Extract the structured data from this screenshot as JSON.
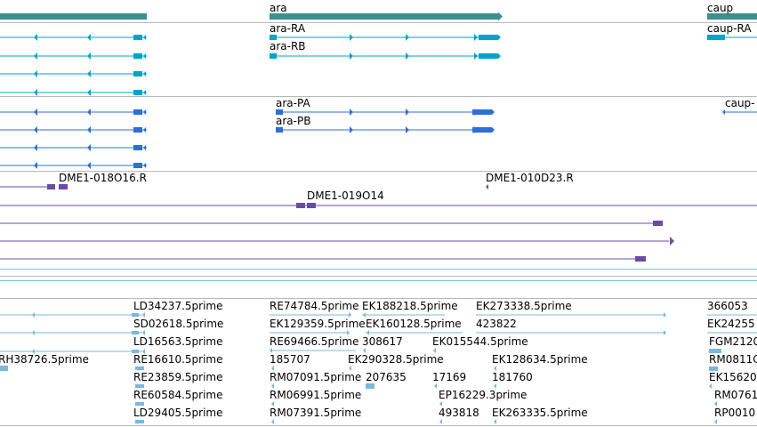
{
  "colors": {
    "gene_teal": "#3d8f8f",
    "transcript_cyan": "#00a3c9",
    "protein_blue": "#2e6fd6",
    "clone_purple": "#6a4ca8",
    "est_lightblue": "#7ab8dc",
    "separator": "#b8b8b8",
    "track_line": "#7fc3d8"
  },
  "genes": [
    "ara",
    "caup"
  ],
  "transcripts": [
    "ara-RA",
    "ara-RB",
    "caup-RA"
  ],
  "proteins": [
    "ara-PA",
    "ara-PB",
    "caup-"
  ],
  "clones": [
    "DME1-018O16.R",
    "DME1-010D23.R",
    "DME1-019O14"
  ],
  "ests": [
    "LD34237.5prime",
    "SD02618.5prime",
    "LD16563.5prime",
    "RE16610.5prime",
    "RE23859.5prime",
    "RE60584.5prime",
    "LD29405.5prime",
    "RE74784.5prime",
    "EK188218.5prime",
    "EK273338.5prime",
    "EK129359.5prime",
    "EK160128.5prime",
    "423822",
    "RE69466.5prime",
    "308617",
    "EK015544.5prime",
    "185707",
    "EK290328.5prime",
    "EK128634.5prime",
    "RM07091.5prime",
    "207635",
    "17169",
    "181760",
    "RM06991.5prime",
    "EP16229.3prime",
    "RM07391.5prime",
    "493818",
    "EK263335.5prime",
    "RH38726.5prime",
    "366053",
    "EK24255",
    "FGM2120",
    "RM0811C",
    "EK15620",
    "RM0761",
    "RP0010"
  ]
}
